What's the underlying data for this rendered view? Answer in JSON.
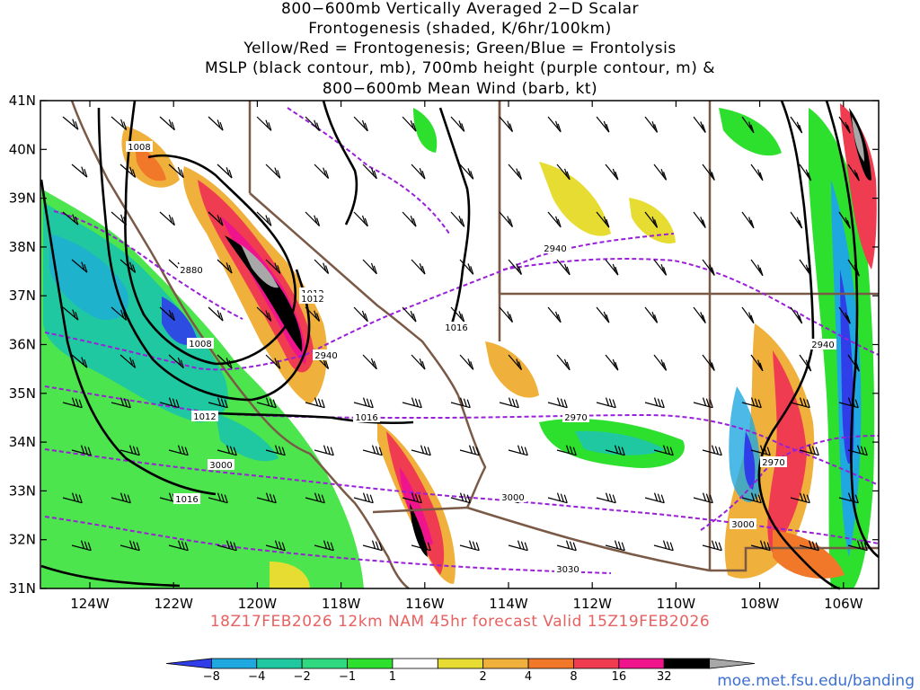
{
  "title_lines": [
    "800−600mb Vertically Averaged 2−D Scalar",
    "Frontogenesis (shaded, K/6hr/100km)",
    "Yellow/Red = Frontogenesis;  Green/Blue = Frontolysis",
    "MSLP (black contour, mb), 700mb height (purple contour, m) &",
    "800−600mb Mean Wind (barb, kt)"
  ],
  "lat_labels": [
    "41N",
    "40N",
    "39N",
    "38N",
    "37N",
    "36N",
    "35N",
    "34N",
    "33N",
    "32N",
    "31N"
  ],
  "lon_labels": [
    "124W",
    "122W",
    "120W",
    "118W",
    "116W",
    "114W",
    "112W",
    "110W",
    "108W",
    "106W"
  ],
  "mslp_labels": [
    "1008",
    "1012",
    "1012",
    "1008",
    "1012",
    "1016",
    "1016",
    "1016"
  ],
  "height_labels": [
    "2880",
    "2940",
    "2940",
    "2940",
    "2970",
    "2970",
    "3000",
    "3000",
    "3000",
    "3030"
  ],
  "valid_text": "18Z17FEB2026 12km NAM 45hr forecast Valid 15Z19FEB2026",
  "colorbar": {
    "labels": [
      "−8",
      "−4",
      "−2",
      "−1",
      "1",
      "2",
      "4",
      "8",
      "16",
      "32"
    ],
    "colors": [
      "#2f3ee8",
      "#1fa8e0",
      "#1fc8a0",
      "#30d880",
      "#2ee02e",
      "#ffffff",
      "#e6dc32",
      "#f0b03c",
      "#f07828",
      "#f03c50",
      "#f0148c",
      "#000000",
      "#a8a8a8"
    ]
  },
  "credit": "moe.met.fsu.edu/banding",
  "colors": {
    "mslp": "#000000",
    "height": "#9a1fd8",
    "border": "#7a5a46"
  }
}
